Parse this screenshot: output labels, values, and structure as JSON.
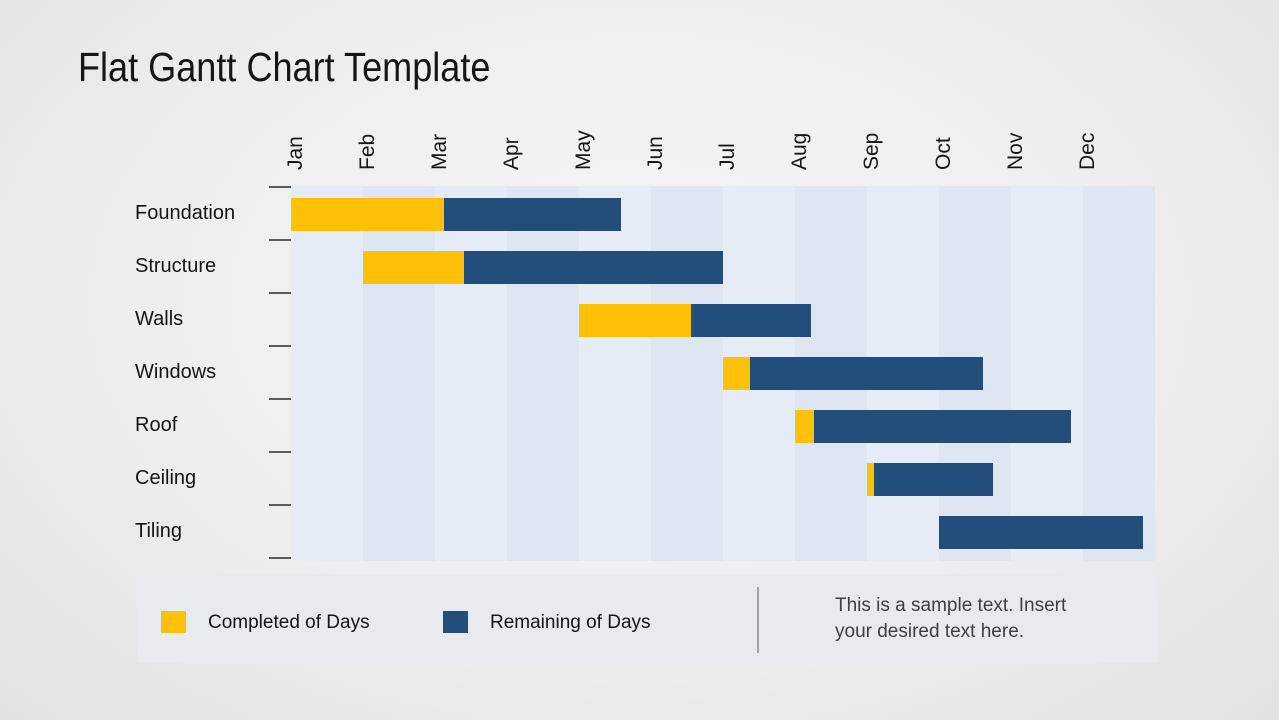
{
  "title": "Flat Gantt Chart Template",
  "legend": {
    "completed_label": "Completed of Days",
    "remaining_label": "Remaining of Days"
  },
  "sample_text": {
    "line1": "This is a sample text. Insert",
    "line2": "your desired text here."
  },
  "colors": {
    "completed": "#FFC008",
    "remaining": "#234E7B",
    "stripe_light": "#e6ecf5",
    "stripe_dark": "#dde6f1",
    "legend_band_bg": "#e8eaef",
    "tick": "#5b5b5b",
    "divider": "#a3a3a3",
    "text": "#141414",
    "sample_text_color": "#3c4046"
  },
  "chart_data": {
    "type": "bar",
    "subtype": "gantt",
    "orientation": "horizontal",
    "unit": "months",
    "x_range": [
      "Jan",
      "Dec"
    ],
    "x_tick_labels": [
      "Jan",
      "Feb",
      "Mar",
      "Apr",
      "May",
      "Jun",
      "Jul",
      "Aug",
      "Sep",
      "Oct",
      "Nov",
      "Dec"
    ],
    "categories": [
      "Foundation",
      "Structure",
      "Walls",
      "Windows",
      "Roof",
      "Ceiling",
      "Tiling"
    ],
    "series": [
      {
        "name": "Completed of Days",
        "color": "#FFC008"
      },
      {
        "name": "Remaining of Days",
        "color": "#234E7B"
      }
    ],
    "tasks": [
      {
        "label": "Foundation",
        "start_month": 0,
        "completed_months": 2.12,
        "remaining_months": 2.46
      },
      {
        "label": "Structure",
        "start_month": 1,
        "completed_months": 1.4,
        "remaining_months": 3.6
      },
      {
        "label": "Walls",
        "start_month": 4,
        "completed_months": 1.55,
        "remaining_months": 1.67
      },
      {
        "label": "Windows",
        "start_month": 6,
        "completed_months": 0.38,
        "remaining_months": 3.23
      },
      {
        "label": "Roof",
        "start_month": 7,
        "completed_months": 0.26,
        "remaining_months": 3.58
      },
      {
        "label": "Ceiling",
        "start_month": 8,
        "completed_months": 0.1,
        "remaining_months": 1.65
      },
      {
        "label": "Tiling",
        "start_month": 9,
        "completed_months": 0.0,
        "remaining_months": 2.83
      }
    ],
    "legend_position": "bottom",
    "grid": "vertical-month-stripes"
  }
}
